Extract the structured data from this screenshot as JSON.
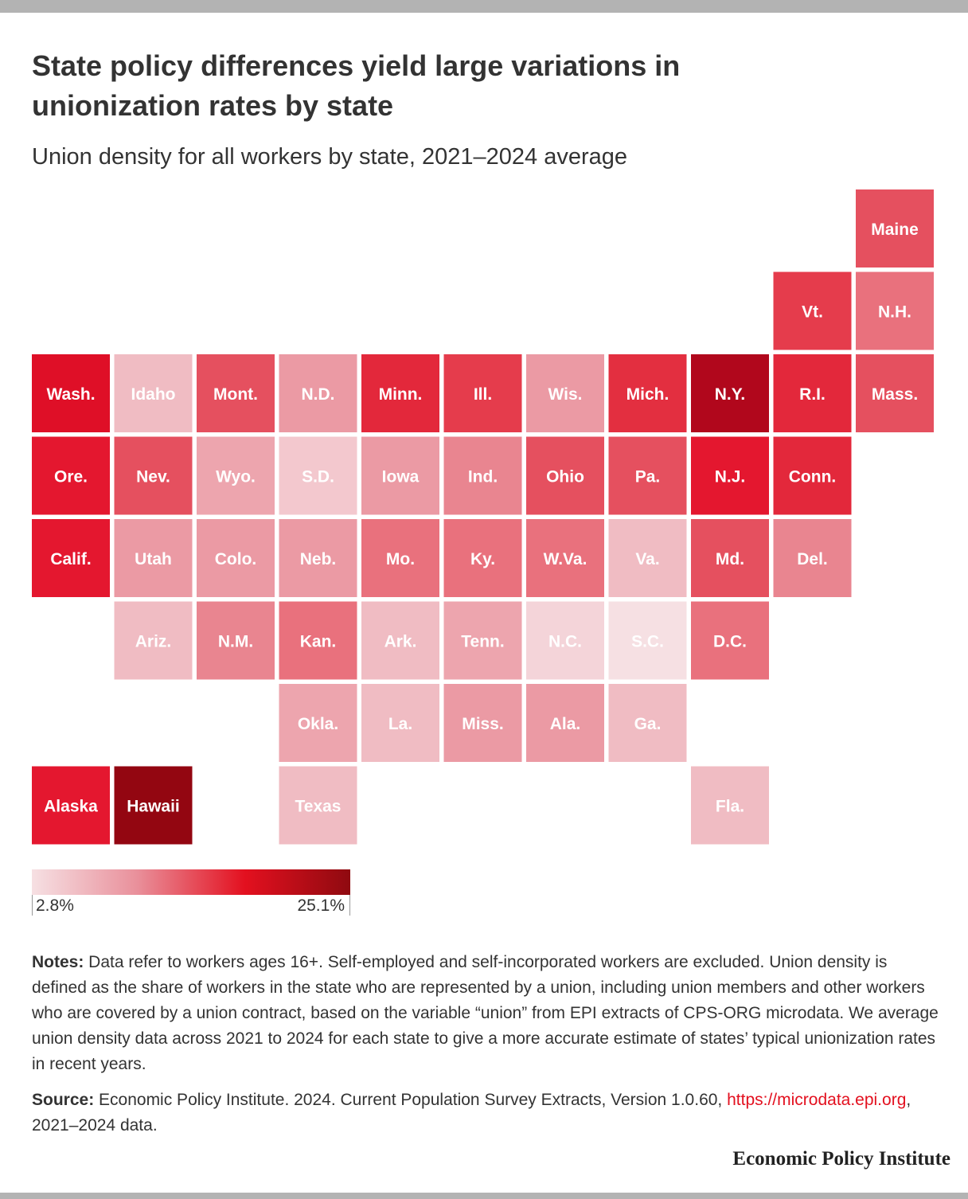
{
  "title": "State policy differences yield large variations in unionization rates by state",
  "subtitle": "Union density for all workers by state, 2021–2024 average",
  "chart_data": {
    "type": "heatmap",
    "subtype": "tile-grid map",
    "value_range": [
      2.8,
      25.1
    ],
    "color_scale": [
      "#f6e0e3",
      "#e9909b",
      "#e3101f",
      "#8f0a10"
    ],
    "tiles": [
      {
        "label": "Maine",
        "row": 0,
        "col": 10,
        "color": "#e5505f"
      },
      {
        "label": "Vt.",
        "row": 1,
        "col": 9,
        "color": "#e53c4c"
      },
      {
        "label": "N.H.",
        "row": 1,
        "col": 10,
        "color": "#e9717d"
      },
      {
        "label": "Wash.",
        "row": 2,
        "col": 0,
        "color": "#df0f27"
      },
      {
        "label": "Idaho",
        "row": 2,
        "col": 1,
        "color": "#f0bcc3"
      },
      {
        "label": "Mont.",
        "row": 2,
        "col": 2,
        "color": "#e5505f"
      },
      {
        "label": "N.D.",
        "row": 2,
        "col": 3,
        "color": "#eb9aa4"
      },
      {
        "label": "Minn.",
        "row": 2,
        "col": 4,
        "color": "#e3283b"
      },
      {
        "label": "Ill.",
        "row": 2,
        "col": 5,
        "color": "#e53c4c"
      },
      {
        "label": "Wis.",
        "row": 2,
        "col": 6,
        "color": "#eb9aa4"
      },
      {
        "label": "Mich.",
        "row": 2,
        "col": 7,
        "color": "#e32f40"
      },
      {
        "label": "N.Y.",
        "row": 2,
        "col": 8,
        "color": "#b1071c"
      },
      {
        "label": "R.I.",
        "row": 2,
        "col": 9,
        "color": "#e3283b"
      },
      {
        "label": "Mass.",
        "row": 2,
        "col": 10,
        "color": "#e5505f"
      },
      {
        "label": "Ore.",
        "row": 3,
        "col": 0,
        "color": "#e4172f"
      },
      {
        "label": "Nev.",
        "row": 3,
        "col": 1,
        "color": "#e5505f"
      },
      {
        "label": "Wyo.",
        "row": 3,
        "col": 2,
        "color": "#eda5ae"
      },
      {
        "label": "S.D.",
        "row": 3,
        "col": 3,
        "color": "#f3c8ce"
      },
      {
        "label": "Iowa",
        "row": 3,
        "col": 4,
        "color": "#eb9aa4"
      },
      {
        "label": "Ind.",
        "row": 3,
        "col": 5,
        "color": "#e98590"
      },
      {
        "label": "Ohio",
        "row": 3,
        "col": 6,
        "color": "#e5505f"
      },
      {
        "label": "Pa.",
        "row": 3,
        "col": 7,
        "color": "#e5505f"
      },
      {
        "label": "N.J.",
        "row": 3,
        "col": 8,
        "color": "#e4172f"
      },
      {
        "label": "Conn.",
        "row": 3,
        "col": 9,
        "color": "#e3283b"
      },
      {
        "label": "Calif.",
        "row": 4,
        "col": 0,
        "color": "#e4172f"
      },
      {
        "label": "Utah",
        "row": 4,
        "col": 1,
        "color": "#eb9aa4"
      },
      {
        "label": "Colo.",
        "row": 4,
        "col": 2,
        "color": "#eb9aa4"
      },
      {
        "label": "Neb.",
        "row": 4,
        "col": 3,
        "color": "#eb9aa4"
      },
      {
        "label": "Mo.",
        "row": 4,
        "col": 4,
        "color": "#e9717d"
      },
      {
        "label": "Ky.",
        "row": 4,
        "col": 5,
        "color": "#e9717d"
      },
      {
        "label": "W.Va.",
        "row": 4,
        "col": 6,
        "color": "#e9717d"
      },
      {
        "label": "Va.",
        "row": 4,
        "col": 7,
        "color": "#f0bcc3"
      },
      {
        "label": "Md.",
        "row": 4,
        "col": 8,
        "color": "#e5505f"
      },
      {
        "label": "Del.",
        "row": 4,
        "col": 9,
        "color": "#e98590"
      },
      {
        "label": "Ariz.",
        "row": 5,
        "col": 1,
        "color": "#f0bcc3"
      },
      {
        "label": "N.M.",
        "row": 5,
        "col": 2,
        "color": "#e98590"
      },
      {
        "label": "Kan.",
        "row": 5,
        "col": 3,
        "color": "#e9717d"
      },
      {
        "label": "Ark.",
        "row": 5,
        "col": 4,
        "color": "#f0bcc3"
      },
      {
        "label": "Tenn.",
        "row": 5,
        "col": 5,
        "color": "#eda5ae"
      },
      {
        "label": "N.C.",
        "row": 5,
        "col": 6,
        "color": "#f4d4d9"
      },
      {
        "label": "S.C.",
        "row": 5,
        "col": 7,
        "color": "#f6e0e3"
      },
      {
        "label": "D.C.",
        "row": 5,
        "col": 8,
        "color": "#e9717d"
      },
      {
        "label": "Okla.",
        "row": 6,
        "col": 3,
        "color": "#eda5ae"
      },
      {
        "label": "La.",
        "row": 6,
        "col": 4,
        "color": "#f0bcc3"
      },
      {
        "label": "Miss.",
        "row": 6,
        "col": 5,
        "color": "#eb9aa4"
      },
      {
        "label": "Ala.",
        "row": 6,
        "col": 6,
        "color": "#eb9aa4"
      },
      {
        "label": "Ga.",
        "row": 6,
        "col": 7,
        "color": "#f0bcc3"
      },
      {
        "label": "Alaska",
        "row": 7,
        "col": 0,
        "color": "#e4172f"
      },
      {
        "label": "Hawaii",
        "row": 7,
        "col": 1,
        "color": "#930611"
      },
      {
        "label": "Texas",
        "row": 7,
        "col": 3,
        "color": "#f0bcc3"
      },
      {
        "label": "Fla.",
        "row": 7,
        "col": 8,
        "color": "#f0bcc3"
      }
    ]
  },
  "legend": {
    "min_label": "2.8%",
    "max_label": "25.1%"
  },
  "notes": {
    "lead": "Notes:",
    "text": " Data refer to workers ages 16+. Self-employed and self-incorporated workers are excluded. Union density is defined as the share of workers in the state who are represented by a union, including union members and other workers who are covered by a union contract, based on the variable “union” from EPI extracts of CPS-ORG microdata. We average union density data across 2021 to 2024 for each state to give a more accurate estimate of states’ typical unionization rates in recent years."
  },
  "source": {
    "lead": "Source:",
    "text": " Economic Policy Institute. 2024. Current Population Survey Extracts, Version 1.0.60, ",
    "link": "https://microdata.epi.org",
    "tail": ", 2021–2024 data."
  },
  "brand": "Economic Policy Institute"
}
